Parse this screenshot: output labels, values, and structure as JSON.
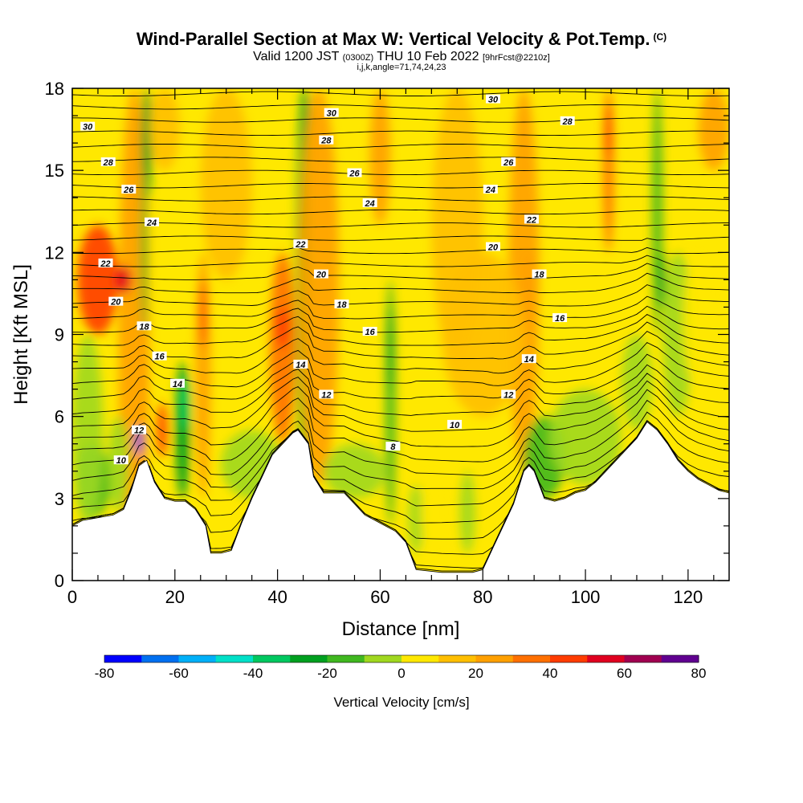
{
  "title": {
    "main": "Wind-Parallel Section at Max W: Vertical Velocity & Pot.Temp.",
    "copyright": "(C)",
    "valid_prefix": "Valid 1200 JST",
    "valid_utc": "(0300Z)",
    "valid_date": "THU 10 Feb 2022",
    "forecast": "[9hrFcst@2210z]",
    "indices": "i,j,k,angle=71,74,24,23"
  },
  "chart_data": {
    "type": "heatmap",
    "xlabel": "Distance [nm]",
    "ylabel": "Height [Kft MSL]",
    "xlim": [
      0,
      128
    ],
    "ylim": [
      0,
      18
    ],
    "x_ticks": [
      0,
      20,
      40,
      60,
      80,
      100,
      120
    ],
    "y_ticks": [
      0,
      3,
      6,
      9,
      12,
      15,
      18
    ],
    "terrain_profile": {
      "x": [
        0,
        2,
        5,
        8,
        10,
        11.5,
        13,
        14.5,
        16,
        18,
        20,
        22,
        24,
        26,
        27,
        29,
        31,
        33,
        35,
        37,
        39,
        41,
        43,
        44,
        46,
        47,
        49,
        53,
        57,
        61,
        63,
        65,
        67,
        72,
        78,
        80,
        82,
        84,
        86,
        87,
        88,
        89,
        90,
        92,
        94,
        96,
        98,
        100,
        102,
        104,
        106,
        108,
        110,
        112,
        114,
        116,
        118,
        120,
        122,
        124,
        126,
        128
      ],
      "y": [
        2.0,
        2.2,
        2.3,
        2.4,
        2.6,
        3.3,
        4.2,
        4.4,
        3.6,
        3.0,
        2.9,
        2.9,
        2.6,
        2.0,
        1.0,
        1.0,
        1.1,
        2.1,
        3.0,
        3.8,
        4.6,
        5.0,
        5.4,
        5.5,
        5.0,
        3.8,
        3.2,
        3.2,
        2.4,
        2.0,
        1.8,
        1.4,
        0.4,
        0.3,
        0.3,
        0.4,
        1.2,
        2.0,
        2.8,
        3.4,
        4.0,
        4.2,
        4.0,
        3.0,
        2.9,
        3.0,
        3.2,
        3.3,
        3.6,
        4.0,
        4.4,
        4.8,
        5.2,
        5.8,
        5.5,
        5.0,
        4.4,
        4.0,
        3.7,
        3.5,
        3.3,
        3.2
      ]
    },
    "potential_temperature_contours": {
      "levels": [
        8,
        10,
        12,
        14,
        16,
        18,
        20,
        22,
        24,
        26,
        28,
        30
      ],
      "labels": [
        {
          "level": 30,
          "x": 3,
          "y": 16.6
        },
        {
          "level": 28,
          "x": 7,
          "y": 15.3
        },
        {
          "level": 26,
          "x": 11,
          "y": 14.3
        },
        {
          "level": 24,
          "x": 15.5,
          "y": 13.1
        },
        {
          "level": 22,
          "x": 6.5,
          "y": 11.6
        },
        {
          "level": 20,
          "x": 8.5,
          "y": 10.2
        },
        {
          "level": 18,
          "x": 14,
          "y": 9.3
        },
        {
          "level": 16,
          "x": 17,
          "y": 8.2
        },
        {
          "level": 14,
          "x": 20.5,
          "y": 7.2
        },
        {
          "level": 12,
          "x": 13,
          "y": 5.5
        },
        {
          "level": 10,
          "x": 9.5,
          "y": 4.4
        },
        {
          "level": 30,
          "x": 50.5,
          "y": 17.1
        },
        {
          "level": 28,
          "x": 49.5,
          "y": 16.1
        },
        {
          "level": 26,
          "x": 55,
          "y": 14.9
        },
        {
          "level": 24,
          "x": 58,
          "y": 13.8
        },
        {
          "level": 22,
          "x": 44.5,
          "y": 12.3
        },
        {
          "level": 20,
          "x": 48.5,
          "y": 11.2
        },
        {
          "level": 18,
          "x": 52.5,
          "y": 10.1
        },
        {
          "level": 16,
          "x": 58,
          "y": 9.1
        },
        {
          "level": 14,
          "x": 44.5,
          "y": 7.9
        },
        {
          "level": 12,
          "x": 49.5,
          "y": 6.8
        },
        {
          "level": 10,
          "x": 74.5,
          "y": 5.7
        },
        {
          "level": 8,
          "x": 62.5,
          "y": 4.9
        },
        {
          "level": 30,
          "x": 82,
          "y": 17.6
        },
        {
          "level": 28,
          "x": 96.5,
          "y": 16.8
        },
        {
          "level": 26,
          "x": 85,
          "y": 15.3
        },
        {
          "level": 24,
          "x": 81.5,
          "y": 14.3
        },
        {
          "level": 22,
          "x": 89.5,
          "y": 13.2
        },
        {
          "level": 20,
          "x": 82,
          "y": 12.2
        },
        {
          "level": 18,
          "x": 91,
          "y": 11.2
        },
        {
          "level": 16,
          "x": 95,
          "y": 9.6
        },
        {
          "level": 14,
          "x": 89,
          "y": 8.1
        },
        {
          "level": 12,
          "x": 85,
          "y": 6.8
        }
      ]
    }
  },
  "colorbar": {
    "title": "Vertical Velocity [cm/s]",
    "min": -80,
    "max": 80,
    "step": 10,
    "tick_labels": [
      "-80",
      "-60",
      "-40",
      "-20",
      "0",
      "20",
      "40",
      "60",
      "80"
    ],
    "colors": [
      "#0000ff",
      "#0070f0",
      "#00b0f8",
      "#00e0c8",
      "#00c860",
      "#00a020",
      "#40b820",
      "#a0d820",
      "#ffe800",
      "#ffbf00",
      "#ffa000",
      "#ff7000",
      "#ff3c00",
      "#e00020",
      "#a00050",
      "#600090"
    ]
  }
}
